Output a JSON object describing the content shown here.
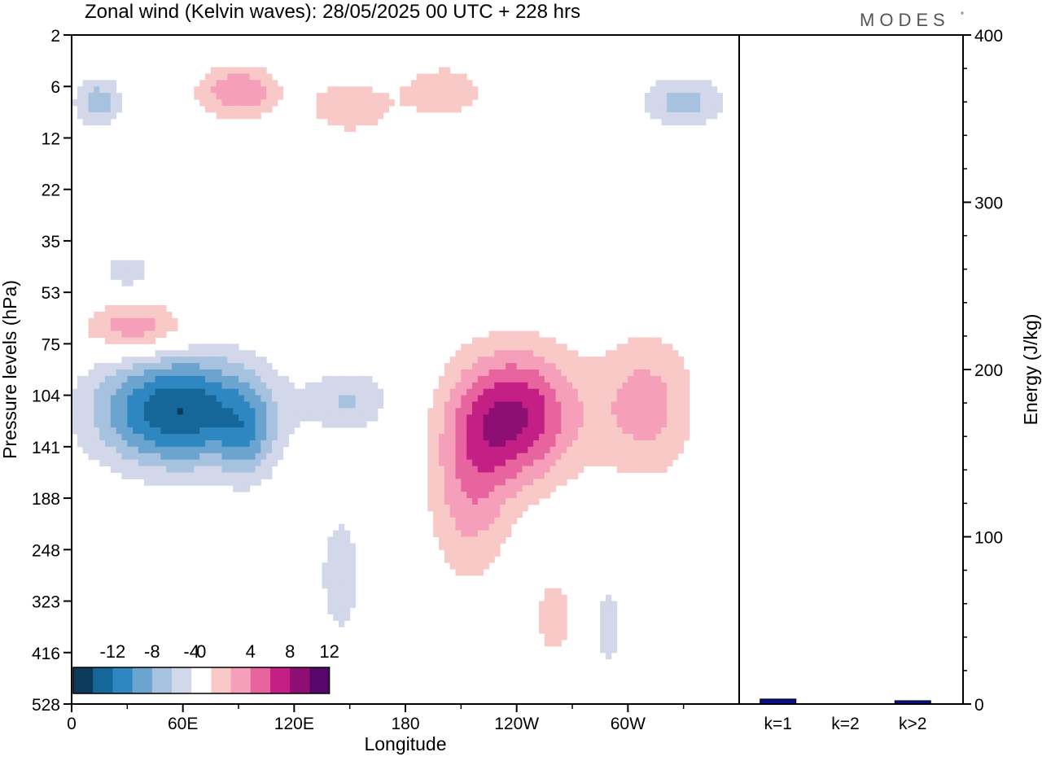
{
  "title": "Zonal wind (Kelvin waves):  28/05/2025  00 UTC  + 228 hrs",
  "brand": "MODES",
  "brand_mark": "°",
  "colors": {
    "neg": [
      "#0b3a5a",
      "#15679a",
      "#2e87c0",
      "#6aa4cf",
      "#a7c2df",
      "#d3d7ea"
    ],
    "zero": "#ffffff",
    "pos": [
      "#f8c9c6",
      "#f59fba",
      "#e8649e",
      "#c41f84",
      "#8e0f74",
      "#58066b"
    ],
    "bar": "#0a0f8c"
  },
  "chart_data": [
    {
      "type": "heatmap",
      "title": "Zonal wind (Kelvin waves):  28/05/2025  00 UTC  + 228 hrs",
      "xlabel": "Longitude",
      "ylabel": "Pressure levels (hPa)",
      "x_ticks": [
        "0",
        "60E",
        "120E",
        "180",
        "120W",
        "60W"
      ],
      "x_tick_degrees": [
        0,
        60,
        120,
        180,
        240,
        300
      ],
      "xlim": [
        0,
        360
      ],
      "y_ticks": [
        "2",
        "6",
        "12",
        "22",
        "35",
        "53",
        "75",
        "104",
        "141",
        "188",
        "248",
        "323",
        "416",
        "528"
      ],
      "colorbar_ticks": [
        "-12",
        "-8",
        "-4",
        "0",
        "4",
        "8",
        "12"
      ],
      "colorbar_levels": [
        -14,
        -12,
        -10,
        -8,
        -6,
        -4,
        -2,
        2,
        4,
        6,
        8,
        10,
        12,
        14
      ],
      "anomalies": [
        {
          "lon": 58,
          "lev": 7.3,
          "value": -12,
          "rlon": 45,
          "rlev": 1.1
        },
        {
          "lon": 95,
          "lev": 7.8,
          "value": -4,
          "rlon": 14,
          "rlev": 0.9
        },
        {
          "lon": 150,
          "lev": 7.1,
          "value": -4,
          "rlon": 22,
          "rlev": 0.6
        },
        {
          "lon": 240,
          "lev": 7.4,
          "value": 10,
          "rlon": 32,
          "rlev": 1.3
        },
        {
          "lon": 215,
          "lev": 8.8,
          "value": 5,
          "rlon": 22,
          "rlev": 1.8
        },
        {
          "lon": 310,
          "lev": 7.2,
          "value": 5,
          "rlon": 28,
          "rlev": 1.4
        },
        {
          "lon": 35,
          "lev": 5.7,
          "value": 6,
          "rlon": 28,
          "rlev": 0.5
        },
        {
          "lon": 90,
          "lev": 1.1,
          "value": 6,
          "rlon": 22,
          "rlev": 0.5
        },
        {
          "lon": 150,
          "lev": 1.4,
          "value": 4,
          "rlon": 22,
          "rlev": 0.5
        },
        {
          "lon": 200,
          "lev": 1.1,
          "value": 4,
          "rlon": 22,
          "rlev": 0.5
        },
        {
          "lon": 330,
          "lev": 1.3,
          "value": -5,
          "rlon": 22,
          "rlev": 0.5
        },
        {
          "lon": 15,
          "lev": 1.3,
          "value": -5,
          "rlon": 12,
          "rlev": 0.5
        },
        {
          "lon": 30,
          "lev": 4.6,
          "value": -3,
          "rlon": 16,
          "rlev": 0.4
        },
        {
          "lon": 290,
          "lev": 11.5,
          "value": -3,
          "rlon": 8,
          "rlev": 1.0
        },
        {
          "lon": 145,
          "lev": 10.5,
          "value": -3,
          "rlon": 14,
          "rlev": 1.5
        },
        {
          "lon": 260,
          "lev": 11.3,
          "value": 3,
          "rlon": 12,
          "rlev": 0.9
        }
      ]
    },
    {
      "type": "bar",
      "ylabel": "Energy (J/kg)",
      "categories": [
        "k=1",
        "k=2",
        "k>2"
      ],
      "values": [
        2,
        0,
        1
      ],
      "ylim": [
        0,
        400
      ],
      "y_ticks": [
        "0",
        "100",
        "200",
        "300",
        "400"
      ]
    }
  ]
}
